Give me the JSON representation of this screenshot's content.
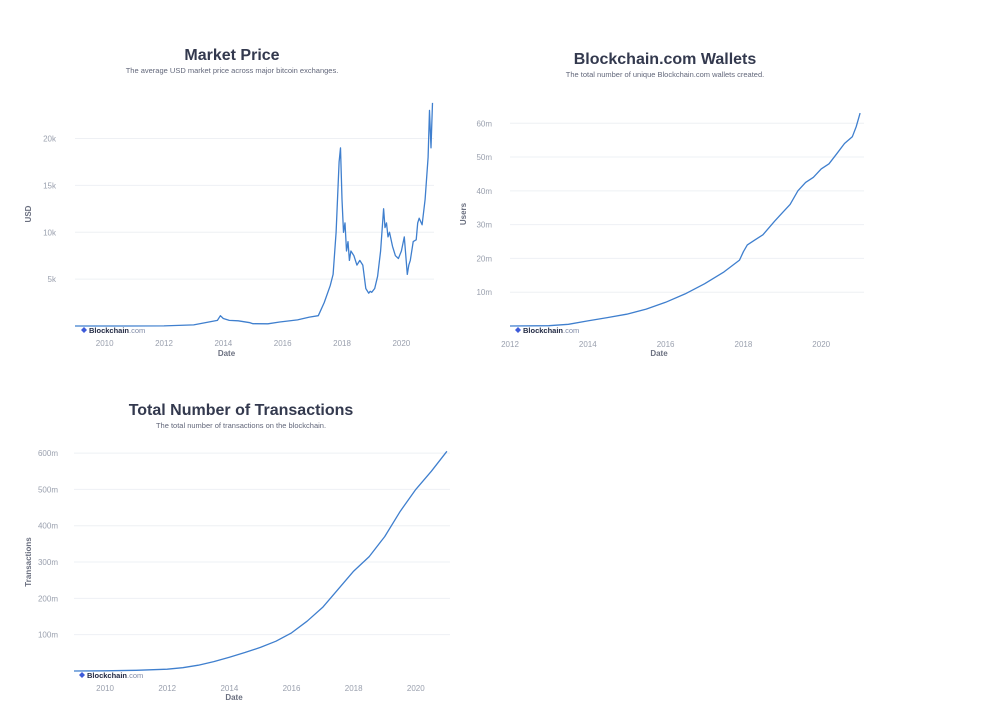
{
  "brand": {
    "bold": "Blockchain",
    "suffix": ".com"
  },
  "chart_data": [
    {
      "type": "line",
      "title": "Market Price",
      "subtitle": "The average USD market price across major bitcoin exchanges.",
      "xlabel": "Date",
      "ylabel": "USD",
      "xlim": [
        2009.0,
        2021.1
      ],
      "ylim": [
        0,
        24000
      ],
      "xticks": [
        {
          "v": 2010,
          "label": "2010"
        },
        {
          "v": 2012,
          "label": "2012"
        },
        {
          "v": 2014,
          "label": "2014"
        },
        {
          "v": 2016,
          "label": "2016"
        },
        {
          "v": 2018,
          "label": "2018"
        },
        {
          "v": 2020,
          "label": "2020"
        }
      ],
      "yticks": [
        {
          "v": 5000,
          "label": "5k"
        },
        {
          "v": 10000,
          "label": "10k"
        },
        {
          "v": 15000,
          "label": "15k"
        },
        {
          "v": 20000,
          "label": "20k"
        }
      ],
      "grid": true,
      "legend": "none",
      "series": [
        {
          "x": [
            2009.0,
            2010.5,
            2012.0,
            2013.0,
            2013.8,
            2013.9,
            2014.0,
            2014.2,
            2014.5,
            2014.9,
            2015.0,
            2015.5,
            2015.9,
            2016.5,
            2016.9,
            2017.2,
            2017.4,
            2017.6,
            2017.7,
            2017.8,
            2017.9,
            2017.95,
            2018.0,
            2018.05,
            2018.1,
            2018.15,
            2018.2,
            2018.25,
            2018.3,
            2018.4,
            2018.5,
            2018.6,
            2018.7,
            2018.8,
            2018.9,
            2018.95,
            2019.0,
            2019.1,
            2019.2,
            2019.3,
            2019.4,
            2019.45,
            2019.5,
            2019.55,
            2019.6,
            2019.7,
            2019.8,
            2019.9,
            2020.0,
            2020.1,
            2020.2,
            2020.25,
            2020.3,
            2020.4,
            2020.5,
            2020.55,
            2020.6,
            2020.7,
            2020.8,
            2020.9,
            2020.95,
            2021.0,
            2021.05
          ],
          "y": [
            0,
            5,
            8,
            120,
            600,
            1100,
            800,
            600,
            550,
            350,
            250,
            240,
            430,
            650,
            950,
            1100,
            2500,
            4300,
            5500,
            10000,
            17500,
            19000,
            13500,
            10000,
            11000,
            8000,
            9000,
            7000,
            8000,
            7500,
            6500,
            7000,
            6500,
            4000,
            3500,
            3700,
            3600,
            4000,
            5300,
            8000,
            12500,
            10500,
            11000,
            9500,
            10000,
            8500,
            7500,
            7200,
            8000,
            9500,
            5500,
            6500,
            7000,
            9000,
            9200,
            11000,
            11500,
            10800,
            13500,
            18000,
            23000,
            19000,
            23800
          ]
        }
      ]
    },
    {
      "type": "line",
      "title": "Blockchain.com Wallets",
      "subtitle": "The total number of unique Blockchain.com wallets created.",
      "xlabel": "Date",
      "ylabel": "Users",
      "xlim": [
        2012.0,
        2021.1
      ],
      "ylim": [
        0,
        66000000
      ],
      "xticks": [
        {
          "v": 2012,
          "label": "2012"
        },
        {
          "v": 2014,
          "label": "2014"
        },
        {
          "v": 2016,
          "label": "2016"
        },
        {
          "v": 2018,
          "label": "2018"
        },
        {
          "v": 2020,
          "label": "2020"
        }
      ],
      "yticks": [
        {
          "v": 10000000,
          "label": "10m"
        },
        {
          "v": 20000000,
          "label": "20m"
        },
        {
          "v": 30000000,
          "label": "30m"
        },
        {
          "v": 40000000,
          "label": "40m"
        },
        {
          "v": 50000000,
          "label": "50m"
        },
        {
          "v": 60000000,
          "label": "60m"
        }
      ],
      "grid": true,
      "legend": "none",
      "series": [
        {
          "x": [
            2012.0,
            2013.0,
            2013.5,
            2014.0,
            2014.5,
            2015.0,
            2015.5,
            2016.0,
            2016.5,
            2017.0,
            2017.5,
            2017.9,
            2018.0,
            2018.1,
            2018.3,
            2018.5,
            2018.8,
            2019.0,
            2019.2,
            2019.4,
            2019.6,
            2019.8,
            2020.0,
            2020.2,
            2020.4,
            2020.6,
            2020.8,
            2020.9,
            2021.0
          ],
          "y": [
            0,
            100000,
            500000,
            1500000,
            2500000,
            3500000,
            5000000,
            7000000,
            9500000,
            12500000,
            16000000,
            19500000,
            22000000,
            24000000,
            25500000,
            27000000,
            31000000,
            33500000,
            36000000,
            40000000,
            42500000,
            44000000,
            46500000,
            48000000,
            51000000,
            54000000,
            56000000,
            59000000,
            63000000
          ]
        }
      ]
    },
    {
      "type": "line",
      "title": "Total Number of Transactions",
      "subtitle": "The total number of transactions on the blockchain.",
      "xlabel": "Date",
      "ylabel": "Transactions",
      "xlim": [
        2009.0,
        2021.1
      ],
      "ylim": [
        0,
        625000000
      ],
      "xticks": [
        {
          "v": 2010,
          "label": "2010"
        },
        {
          "v": 2012,
          "label": "2012"
        },
        {
          "v": 2014,
          "label": "2014"
        },
        {
          "v": 2016,
          "label": "2016"
        },
        {
          "v": 2018,
          "label": "2018"
        },
        {
          "v": 2020,
          "label": "2020"
        }
      ],
      "yticks": [
        {
          "v": 100000000,
          "label": "100m"
        },
        {
          "v": 200000000,
          "label": "200m"
        },
        {
          "v": 300000000,
          "label": "300m"
        },
        {
          "v": 400000000,
          "label": "400m"
        },
        {
          "v": 500000000,
          "label": "500m"
        },
        {
          "v": 600000000,
          "label": "600m"
        }
      ],
      "grid": true,
      "legend": "none",
      "series": [
        {
          "x": [
            2009.0,
            2010.0,
            2011.0,
            2012.0,
            2012.5,
            2013.0,
            2013.5,
            2014.0,
            2014.5,
            2015.0,
            2015.5,
            2016.0,
            2016.5,
            2017.0,
            2017.5,
            2018.0,
            2018.5,
            2019.0,
            2019.5,
            2020.0,
            2020.5,
            2021.0
          ],
          "y": [
            0,
            500000,
            2000000,
            5000000,
            9000000,
            16000000,
            26000000,
            38000000,
            51000000,
            65000000,
            82000000,
            105000000,
            137000000,
            175000000,
            225000000,
            275000000,
            315000000,
            370000000,
            440000000,
            500000000,
            550000000,
            605000000
          ]
        }
      ]
    }
  ]
}
